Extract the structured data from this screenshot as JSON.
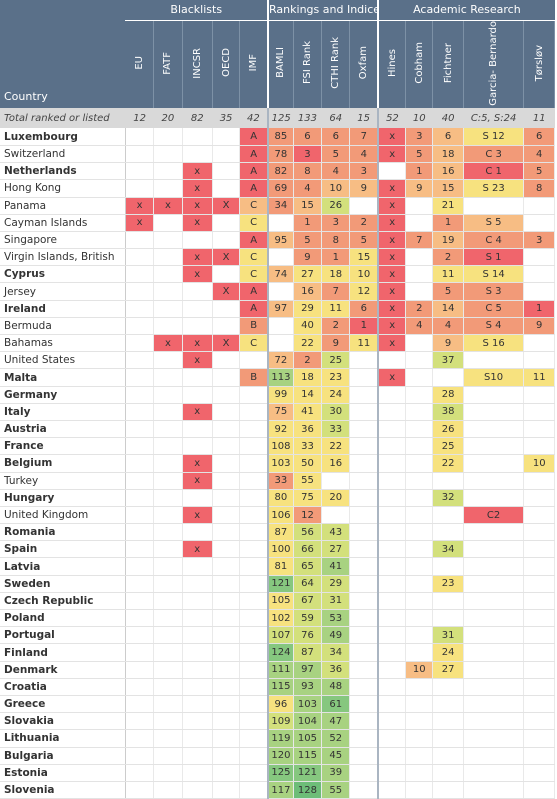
{
  "groups": [
    {
      "label": "Blacklists",
      "span": 5
    },
    {
      "label": "Rankings and Indices",
      "span": 4
    },
    {
      "label": "Academic Research",
      "span": 5
    }
  ],
  "columns": [
    "EU",
    "FATF",
    "INCSR",
    "OECD",
    "IMF",
    "BAMLI",
    "FSI Rank",
    "CTHI Rank",
    "Oxfam",
    "Hines",
    "Cobham",
    "Fichtner",
    "Garcia-\nBernardo",
    "Tørsløv"
  ],
  "country_header": "Country",
  "totals": {
    "label": "Total ranked or listed",
    "values": [
      "12",
      "20",
      "82",
      "35",
      "42",
      "125",
      "133",
      "64",
      "15",
      "52",
      "10",
      "40",
      "C:5, S:24",
      "11"
    ]
  },
  "colors": {
    "red": "#f0656c",
    "orange": "#f29a78",
    "peach": "#f7bd84",
    "yellow": "#f7e27f",
    "lime": "#d3e07c",
    "lgreen": "#a8d281",
    "green": "#86c77f",
    "dgreen": "#6dbd78"
  },
  "rows": [
    {
      "name": "Luxembourg",
      "bold": true,
      "cells": [
        "",
        "",
        "",
        "",
        "A|red",
        "85|orange",
        "6|orange",
        "6|orange",
        "7|orange",
        "x|red",
        "3|orange",
        "6|peach",
        "S 12|yellow",
        "6|orange"
      ]
    },
    {
      "name": "Switzerland",
      "bold": false,
      "cells": [
        "",
        "",
        "",
        "",
        "A|red",
        "78|orange",
        "3|red",
        "5|orange",
        "4|orange",
        "x|red",
        "5|orange",
        "18|peach",
        "C 3|orange",
        "4|orange"
      ]
    },
    {
      "name": "Netherlands",
      "bold": true,
      "cells": [
        "",
        "",
        "x|red",
        "",
        "A|red",
        "82|orange",
        "8|orange",
        "4|orange",
        "3|orange",
        "",
        "1|orange",
        "16|peach",
        "C 1|red",
        "5|orange"
      ]
    },
    {
      "name": "Hong Kong",
      "bold": false,
      "cells": [
        "",
        "",
        "x|red",
        "",
        "A|red",
        "69|orange",
        "4|orange",
        "10|peach",
        "9|peach",
        "x|red",
        "9|peach",
        "15|peach",
        "S 23|yellow",
        "8|orange"
      ]
    },
    {
      "name": "Panama",
      "bold": false,
      "cells": [
        "x|red",
        "x|red",
        "x|red",
        "X|red",
        "C|peach",
        "34|orange",
        "15|peach",
        "26|lime",
        "",
        "x|red",
        "",
        "21|yellow",
        "",
        ""
      ]
    },
    {
      "name": "Cayman Islands",
      "bold": false,
      "cells": [
        "x|red",
        "",
        "x|red",
        "",
        "C|yellow",
        "",
        "1|orange",
        "3|orange",
        "2|orange",
        "x|red",
        "",
        "1|orange",
        "S 5|peach",
        ""
      ]
    },
    {
      "name": "Singapore",
      "bold": false,
      "cells": [
        "",
        "",
        "",
        "",
        "A|red",
        "95|peach",
        "5|orange",
        "8|orange",
        "5|orange",
        "x|red",
        "7|orange",
        "19|peach",
        "C 4|orange",
        "3|orange"
      ]
    },
    {
      "name": "Virgin Islands, British",
      "bold": false,
      "cells": [
        "",
        "",
        "x|red",
        "X|red",
        "C|yellow",
        "",
        "9|orange",
        "1|orange",
        "15|yellow",
        "x|red",
        "",
        "2|orange",
        "S 1|red",
        ""
      ]
    },
    {
      "name": "Cyprus",
      "bold": true,
      "cells": [
        "",
        "",
        "x|red",
        "",
        "C|yellow",
        "74|peach",
        "27|yellow",
        "18|yellow",
        "10|yellow",
        "x|red",
        "",
        "11|yellow",
        "S 14|yellow",
        ""
      ]
    },
    {
      "name": "Jersey",
      "bold": false,
      "cells": [
        "",
        "",
        "",
        "X|red",
        "A|red",
        "",
        "16|peach",
        "7|orange",
        "12|yellow",
        "x|red",
        "",
        "5|orange",
        "S 3|orange",
        ""
      ]
    },
    {
      "name": "Ireland",
      "bold": true,
      "cells": [
        "",
        "",
        "",
        "",
        "A|red",
        "97|peach",
        "29|yellow",
        "11|yellow",
        "6|orange",
        "x|red",
        "2|orange",
        "14|peach",
        "C 5|orange",
        "1|red"
      ]
    },
    {
      "name": "Bermuda",
      "bold": false,
      "cells": [
        "",
        "",
        "",
        "",
        "B|orange",
        "",
        "40|yellow",
        "2|orange",
        "1|red",
        "x|red",
        "4|orange",
        "4|orange",
        "S 4|orange",
        "9|orange"
      ]
    },
    {
      "name": "Bahamas",
      "bold": false,
      "cells": [
        "",
        "x|red",
        "x|red",
        "X|red",
        "C|yellow",
        "",
        "22|yellow",
        "9|orange",
        "11|yellow",
        "x|red",
        "",
        "9|peach",
        "S 16|yellow",
        ""
      ]
    },
    {
      "name": "United States",
      "bold": false,
      "cells": [
        "",
        "",
        "x|red",
        "",
        "",
        "72|peach",
        "2|orange",
        "25|lime",
        "",
        "",
        "",
        "37|lime",
        "",
        ""
      ]
    },
    {
      "name": "Malta",
      "bold": true,
      "cells": [
        "",
        "",
        "",
        "",
        "B|orange",
        "113|lgreen",
        "18|yellow",
        "23|yellow",
        "",
        "x|red",
        "",
        "",
        "S10|yellow",
        "11|yellow"
      ]
    },
    {
      "name": "Germany",
      "bold": true,
      "cells": [
        "",
        "",
        "",
        "",
        "",
        "99|yellow",
        "14|yellow",
        "24|yellow",
        "",
        "",
        "",
        "28|yellow",
        "",
        ""
      ]
    },
    {
      "name": "Italy",
      "bold": true,
      "cells": [
        "",
        "",
        "x|red",
        "",
        "",
        "75|peach",
        "41|yellow",
        "30|lime",
        "",
        "",
        "",
        "38|lime",
        "",
        ""
      ]
    },
    {
      "name": "Austria",
      "bold": true,
      "cells": [
        "",
        "",
        "",
        "",
        "",
        "92|yellow",
        "36|yellow",
        "33|lime",
        "",
        "",
        "",
        "26|yellow",
        "",
        ""
      ]
    },
    {
      "name": "France",
      "bold": true,
      "cells": [
        "",
        "",
        "",
        "",
        "",
        "108|yellow",
        "33|yellow",
        "22|yellow",
        "",
        "",
        "",
        "25|yellow",
        "",
        ""
      ]
    },
    {
      "name": "Belgium",
      "bold": true,
      "cells": [
        "",
        "",
        "x|red",
        "",
        "",
        "103|yellow",
        "50|yellow",
        "16|yellow",
        "",
        "",
        "",
        "22|yellow",
        "",
        "10|yellow"
      ]
    },
    {
      "name": "Turkey",
      "bold": false,
      "cells": [
        "",
        "",
        "x|red",
        "",
        "",
        "33|orange",
        "55|yellow",
        "",
        "",
        "",
        "",
        "",
        "",
        ""
      ]
    },
    {
      "name": "Hungary",
      "bold": true,
      "cells": [
        "",
        "",
        "",
        "",
        "",
        "80|yellow",
        "75|yellow",
        "20|yellow",
        "",
        "",
        "",
        "32|lime",
        "",
        ""
      ]
    },
    {
      "name": "United Kingdom",
      "bold": false,
      "cells": [
        "",
        "",
        "x|red",
        "",
        "",
        "106|yellow",
        "12|orange",
        "",
        "",
        "",
        "",
        "",
        "C2|red",
        ""
      ]
    },
    {
      "name": "Romania",
      "bold": true,
      "cells": [
        "",
        "",
        "",
        "",
        "",
        "87|yellow",
        "56|lime",
        "43|lime",
        "",
        "",
        "",
        "",
        "",
        ""
      ]
    },
    {
      "name": "Spain",
      "bold": true,
      "cells": [
        "",
        "",
        "x|red",
        "",
        "",
        "100|yellow",
        "66|lime",
        "27|lime",
        "",
        "",
        "",
        "34|lime",
        "",
        ""
      ]
    },
    {
      "name": "Latvia",
      "bold": true,
      "cells": [
        "",
        "",
        "",
        "",
        "",
        "81|yellow",
        "65|lime",
        "41|lgreen",
        "",
        "",
        "",
        "",
        "",
        ""
      ]
    },
    {
      "name": "Sweden",
      "bold": true,
      "cells": [
        "",
        "",
        "",
        "",
        "",
        "121|green",
        "64|lime",
        "29|lime",
        "",
        "",
        "",
        "23|yellow",
        "",
        ""
      ]
    },
    {
      "name": "Czech Republic",
      "bold": true,
      "cells": [
        "",
        "",
        "",
        "",
        "",
        "105|yellow",
        "67|lime",
        "31|lime",
        "",
        "",
        "",
        "",
        "",
        ""
      ]
    },
    {
      "name": "Poland",
      "bold": true,
      "cells": [
        "",
        "",
        "",
        "",
        "",
        "102|yellow",
        "59|lime",
        "53|lgreen",
        "",
        "",
        "",
        "",
        "",
        ""
      ]
    },
    {
      "name": "Portugal",
      "bold": true,
      "cells": [
        "",
        "",
        "",
        "",
        "",
        "107|lime",
        "76|lime",
        "49|lgreen",
        "",
        "",
        "",
        "31|lime",
        "",
        ""
      ]
    },
    {
      "name": "Finland",
      "bold": true,
      "cells": [
        "",
        "",
        "",
        "",
        "",
        "124|green",
        "87|lime",
        "34|lime",
        "",
        "",
        "",
        "24|yellow",
        "",
        ""
      ]
    },
    {
      "name": "Denmark",
      "bold": true,
      "cells": [
        "",
        "",
        "",
        "",
        "",
        "111|lgreen",
        "97|lgreen",
        "36|lime",
        "",
        "",
        "10|peach",
        "27|yellow",
        "",
        ""
      ]
    },
    {
      "name": "Croatia",
      "bold": true,
      "cells": [
        "",
        "",
        "",
        "",
        "",
        "115|lgreen",
        "93|lgreen",
        "48|lgreen",
        "",
        "",
        "",
        "",
        "",
        ""
      ]
    },
    {
      "name": "Greece",
      "bold": true,
      "cells": [
        "",
        "",
        "",
        "",
        "",
        "96|yellow",
        "103|lgreen",
        "61|green",
        "",
        "",
        "",
        "",
        "",
        ""
      ]
    },
    {
      "name": "Slovakia",
      "bold": true,
      "cells": [
        "",
        "",
        "",
        "",
        "",
        "109|lime",
        "104|lgreen",
        "47|lgreen",
        "",
        "",
        "",
        "",
        "",
        ""
      ]
    },
    {
      "name": "Lithuania",
      "bold": true,
      "cells": [
        "",
        "",
        "",
        "",
        "",
        "119|lgreen",
        "105|lgreen",
        "52|lgreen",
        "",
        "",
        "",
        "",
        "",
        ""
      ]
    },
    {
      "name": "Bulgaria",
      "bold": true,
      "cells": [
        "",
        "",
        "",
        "",
        "",
        "120|lgreen",
        "115|lgreen",
        "45|lgreen",
        "",
        "",
        "",
        "",
        "",
        ""
      ]
    },
    {
      "name": "Estonia",
      "bold": true,
      "cells": [
        "",
        "",
        "",
        "",
        "",
        "125|green",
        "121|green",
        "39|lgreen",
        "",
        "",
        "",
        "",
        "",
        ""
      ]
    },
    {
      "name": "Slovenia",
      "bold": true,
      "cells": [
        "",
        "",
        "",
        "",
        "",
        "117|lgreen",
        "128|dgreen",
        "55|lgreen",
        "",
        "",
        "",
        "",
        "",
        ""
      ]
    }
  ]
}
